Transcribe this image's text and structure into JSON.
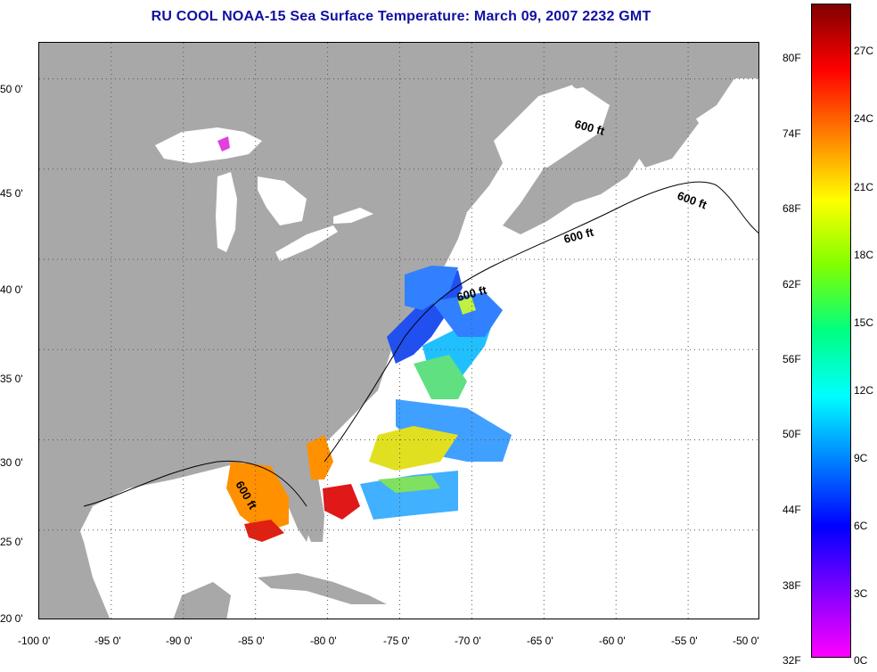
{
  "title": "RU COOL  NOAA-15  Sea Surface Temperature:  March 09, 2007 2232 GMT",
  "map": {
    "lon_range": [
      -100,
      -50
    ],
    "lat_range": [
      20,
      52
    ],
    "lon_ticks": [
      "-100 0'",
      "-95 0'",
      "-90 0'",
      "-85 0'",
      "-80 0'",
      "-75 0'",
      "-70 0'",
      "-65 0'",
      "-60 0'",
      "-55 0'",
      "-50 0'"
    ],
    "lat_ticks": [
      "50 0'",
      "45 0'",
      "40 0'",
      "35 0'",
      "30 0'",
      "25 0'",
      "20 0'"
    ],
    "land_color": "#a8a8a8",
    "ocean_color": "#ffffff",
    "grid": "dotted",
    "contour_label": "600 ft",
    "contour_labels": [
      "600 ft",
      "600 ft",
      "600 ft",
      "600 ft",
      "600 ft"
    ]
  },
  "colorbar": {
    "fahrenheit_labels": [
      "80F",
      "74F",
      "68F",
      "62F",
      "56F",
      "50F",
      "44F",
      "38F",
      "32F"
    ],
    "celsius_labels": [
      "27C",
      "24C",
      "21C",
      "18C",
      "15C",
      "12C",
      "9C",
      "6C",
      "3C",
      "0C"
    ],
    "colors_top_to_bottom": [
      "#800000",
      "#ff0000",
      "#ff8000",
      "#ffff00",
      "#80ff00",
      "#00ff80",
      "#00ffff",
      "#0080ff",
      "#0000ff",
      "#8000ff",
      "#ff00ff"
    ]
  }
}
